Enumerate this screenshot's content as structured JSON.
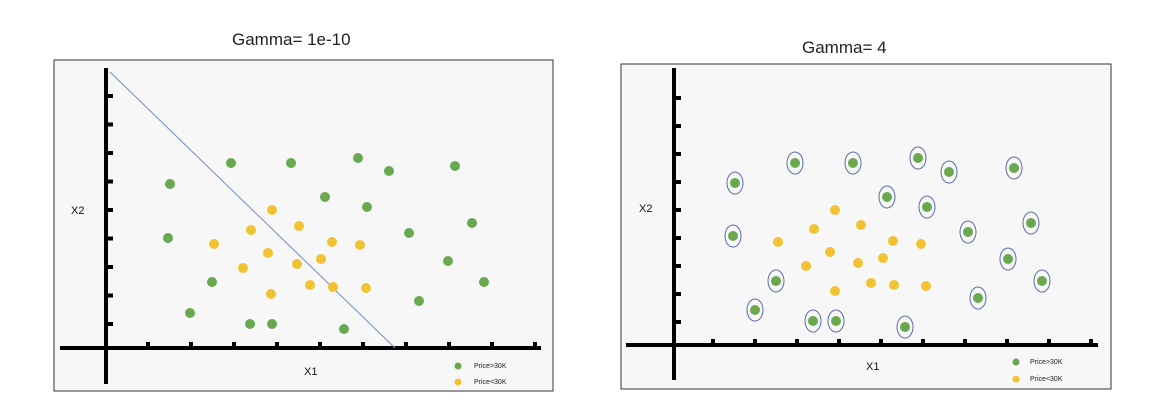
{
  "titles": {
    "left": "Gamma= 1e-10",
    "right": "Gamma= 4"
  },
  "colors": {
    "class_above": "#6aa84f",
    "class_below": "#f1c232",
    "boundary": "#6d8ec2",
    "circle": "#5b6ea8"
  },
  "left_plot": {
    "xlabel": "X1",
    "ylabel": "X2",
    "legend": [
      {
        "label": "Price>30K",
        "class": "above"
      },
      {
        "label": "Price<30K",
        "class": "below"
      }
    ],
    "boundary_line": true,
    "points_above": [
      [
        170,
        184
      ],
      [
        231,
        163
      ],
      [
        291,
        163
      ],
      [
        358,
        158
      ],
      [
        389,
        171
      ],
      [
        455,
        166
      ],
      [
        168,
        238
      ],
      [
        325,
        197
      ],
      [
        367,
        207
      ],
      [
        409,
        233
      ],
      [
        472,
        223
      ],
      [
        448,
        261
      ],
      [
        484,
        282
      ],
      [
        212,
        282
      ],
      [
        190,
        313
      ],
      [
        250,
        324
      ],
      [
        272,
        324
      ],
      [
        344,
        329
      ],
      [
        419,
        301
      ]
    ],
    "points_below": [
      [
        272,
        210
      ],
      [
        251,
        230
      ],
      [
        299,
        226
      ],
      [
        214,
        244
      ],
      [
        268,
        253
      ],
      [
        332,
        242
      ],
      [
        360,
        245
      ],
      [
        243,
        268
      ],
      [
        297,
        264
      ],
      [
        321,
        259
      ],
      [
        310,
        285
      ],
      [
        333,
        287
      ],
      [
        366,
        288
      ],
      [
        271,
        294
      ]
    ]
  },
  "right_plot": {
    "xlabel": "X1",
    "ylabel": "X2",
    "legend": [
      {
        "label": "Price>30K",
        "class": "above"
      },
      {
        "label": "Price<30K",
        "class": "below"
      }
    ],
    "circled": true,
    "points_above": [
      [
        735,
        183
      ],
      [
        795,
        163
      ],
      [
        853,
        163
      ],
      [
        918,
        158
      ],
      [
        949,
        172
      ],
      [
        1014,
        168
      ],
      [
        733,
        236
      ],
      [
        887,
        197
      ],
      [
        927,
        207
      ],
      [
        968,
        232
      ],
      [
        1031,
        223
      ],
      [
        1008,
        259
      ],
      [
        1042,
        281
      ],
      [
        776,
        281
      ],
      [
        755,
        310
      ],
      [
        813,
        321
      ],
      [
        836,
        321
      ],
      [
        905,
        327
      ],
      [
        978,
        298
      ]
    ],
    "points_below": [
      [
        835,
        210
      ],
      [
        814,
        229
      ],
      [
        861,
        225
      ],
      [
        778,
        242
      ],
      [
        830,
        252
      ],
      [
        893,
        241
      ],
      [
        921,
        244
      ],
      [
        806,
        266
      ],
      [
        858,
        263
      ],
      [
        883,
        258
      ],
      [
        871,
        283
      ],
      [
        894,
        285
      ],
      [
        926,
        286
      ],
      [
        835,
        291
      ]
    ]
  }
}
